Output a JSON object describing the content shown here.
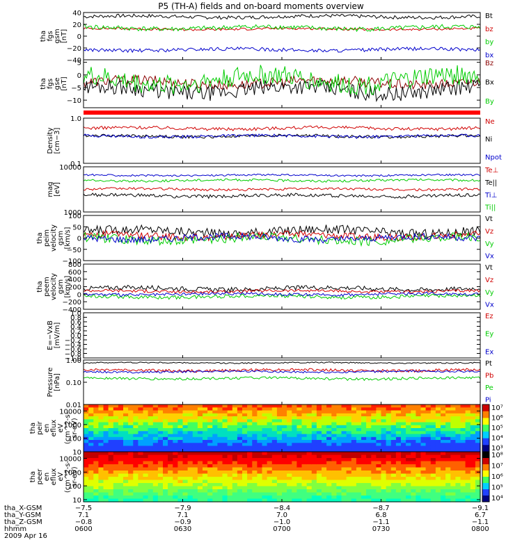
{
  "title": "P5 (TH-A) fields and on-board moments overview",
  "date": "2009 Apr 16",
  "chart_data": {
    "type": "line",
    "panels": [
      {
        "id": "fgs_gsm",
        "ylabel": [
          "tha",
          "fgs",
          "gsm",
          "[nT]"
        ],
        "ylim": [
          -40,
          40
        ],
        "yticks": [
          {
            "v": 40,
            "t": "40"
          },
          {
            "v": 20,
            "t": "20"
          },
          {
            "v": 0,
            "t": "0"
          },
          {
            "v": -20,
            "t": "−20"
          },
          {
            "v": -40,
            "t": "−40"
          }
        ],
        "series": [
          {
            "name": "Bt",
            "color": "#000000",
            "base": 33,
            "amp": 3
          },
          {
            "name": "bz",
            "color": "#d00000",
            "base": 12,
            "amp": 2
          },
          {
            "name": "by",
            "color": "#00cc00",
            "base": 14,
            "amp": 4
          },
          {
            "name": "bx",
            "color": "#0000cc",
            "base": -23,
            "amp": 3
          }
        ]
      },
      {
        "id": "fgs_gse",
        "ylabel": [
          "tha",
          "fgs",
          "gse",
          "[nT]"
        ],
        "ylim": [
          -13,
          6
        ],
        "yticks": [
          {
            "v": 5,
            "t": "5"
          },
          {
            "v": 0,
            "t": "0"
          },
          {
            "v": -5,
            "t": "−5"
          },
          {
            "v": -10,
            "t": "−10"
          }
        ],
        "series": [
          {
            "name": "Bz",
            "color": "#8b0000",
            "base": -3,
            "amp": 2
          },
          {
            "name": "Bx",
            "color": "#000000",
            "base": -6,
            "amp": 3
          },
          {
            "name": "By",
            "color": "#00cc00",
            "base": -2,
            "amp": 4
          }
        ]
      },
      {
        "id": "density",
        "ylabel": [
          "Density",
          "[cm−3]"
        ],
        "ylim": [
          0.1,
          1.0
        ],
        "log": true,
        "yticks": [
          {
            "v": 1.0,
            "t": "1.0"
          },
          {
            "v": 0.1,
            "t": "0.1"
          }
        ],
        "series": [
          {
            "name": "Ne",
            "color": "#d00000",
            "base": 0.6,
            "amp": 0.05
          },
          {
            "name": "Ni",
            "color": "#000000",
            "base": 0.4,
            "amp": 0.03
          },
          {
            "name": "Npot",
            "color": "#0000cc",
            "base": 0.4,
            "amp": 0.03
          }
        ]
      },
      {
        "id": "temperature",
        "ylabel": [
          "mag",
          "[eV]"
        ],
        "ylim": [
          1000,
          10000
        ],
        "log": true,
        "yticks": [
          {
            "v": 10000,
            "t": "10000"
          },
          {
            "v": 1000,
            "t": "1000"
          }
        ],
        "series": [
          {
            "name": "Te⊥",
            "color": "#d00000",
            "base": 3200,
            "amp": 200
          },
          {
            "name": "Te||",
            "color": "#000000",
            "base": 2300,
            "amp": 200
          },
          {
            "name": "Ti⊥",
            "color": "#0000cc",
            "base": 6500,
            "amp": 300
          },
          {
            "name": "Ti||",
            "color": "#00cc00",
            "base": 5000,
            "amp": 300
          }
        ]
      },
      {
        "id": "peim_vel",
        "ylabel": [
          "tha",
          "peim",
          "velocity",
          "gsm",
          "[km/s]"
        ],
        "ylim": [
          -100,
          100
        ],
        "yticks": [
          {
            "v": 100,
            "t": "100"
          },
          {
            "v": 50,
            "t": "50"
          },
          {
            "v": 0,
            "t": "0"
          },
          {
            "v": -50,
            "t": "−50"
          },
          {
            "v": -100,
            "t": "−100"
          }
        ],
        "series": [
          {
            "name": "Vt",
            "color": "#000000",
            "base": 30,
            "amp": 20
          },
          {
            "name": "Vz",
            "color": "#d00000",
            "base": 10,
            "amp": 15
          },
          {
            "name": "Vy",
            "color": "#00cc00",
            "base": -5,
            "amp": 20
          },
          {
            "name": "Vx",
            "color": "#0000cc",
            "base": 0,
            "amp": 15
          }
        ]
      },
      {
        "id": "peem_vel",
        "ylabel": [
          "tha",
          "peem",
          "velocity",
          "gsm",
          "[km/s]"
        ],
        "ylim": [
          -400,
          800
        ],
        "yticks": [
          {
            "v": 800,
            "t": "800"
          },
          {
            "v": 600,
            "t": "600"
          },
          {
            "v": 400,
            "t": "400"
          },
          {
            "v": 200,
            "t": "200"
          },
          {
            "v": 0,
            "t": "0"
          },
          {
            "v": -200,
            "t": "−200"
          },
          {
            "v": -400,
            "t": "−400"
          }
        ],
        "series": [
          {
            "name": "Vt",
            "color": "#000000",
            "base": 150,
            "amp": 60
          },
          {
            "name": "Vz",
            "color": "#d00000",
            "base": 80,
            "amp": 40
          },
          {
            "name": "Vy",
            "color": "#00cc00",
            "base": -60,
            "amp": 50
          },
          {
            "name": "Vx",
            "color": "#0000cc",
            "base": 0,
            "amp": 40
          }
        ]
      },
      {
        "id": "exb",
        "ylabel": [
          "E=−VxB",
          "[mV/m]"
        ],
        "ylim": [
          -1.0,
          1.0
        ],
        "yticks": [
          {
            "v": 1.0,
            "t": "1.0"
          },
          {
            "v": 0.8,
            "t": "0.8"
          },
          {
            "v": 0.6,
            "t": "0.6"
          },
          {
            "v": 0.4,
            "t": "0.4"
          },
          {
            "v": 0.2,
            "t": "0.2"
          },
          {
            "v": 0.0,
            "t": "0.0"
          },
          {
            "v": -0.2,
            "t": "−0.2"
          },
          {
            "v": -0.4,
            "t": "−0.4"
          },
          {
            "v": -0.6,
            "t": "−0.6"
          },
          {
            "v": -0.8,
            "t": "−0.8"
          },
          {
            "v": -1.0,
            "t": "−1.0"
          }
        ],
        "series": [
          {
            "name": "Ez",
            "color": "#d00000"
          },
          {
            "name": "Ey",
            "color": "#00cc00"
          },
          {
            "name": "Ex",
            "color": "#0000cc"
          }
        ]
      },
      {
        "id": "pressure",
        "ylabel": [
          "Pressure",
          "[nPa]"
        ],
        "ylim": [
          0.01,
          1.0
        ],
        "log": true,
        "yticks": [
          {
            "v": 1.0,
            "t": "1.00"
          },
          {
            "v": 0.1,
            "t": "0.10"
          },
          {
            "v": 0.01,
            "t": "0.01"
          }
        ],
        "series": [
          {
            "name": "Pt",
            "color": "#000000",
            "base": 0.75,
            "amp": 0.05
          },
          {
            "name": "Pb",
            "color": "#d00000",
            "base": 0.35,
            "amp": 0.05
          },
          {
            "name": "Pe",
            "color": "#00cc00",
            "base": 0.15,
            "amp": 0.02
          },
          {
            "name": "Pi",
            "color": "#0000cc",
            "base": 0.3,
            "amp": 0.03
          }
        ]
      },
      {
        "id": "peir_eflux",
        "type": "heatmap",
        "ylabel": [
          "tha",
          "peir",
          "en",
          "eflux",
          "eV",
          "(cm^2-s-",
          "sr-eV)"
        ],
        "ylim": [
          10,
          30000
        ],
        "log": true,
        "yticks": [
          {
            "v": 10000,
            "t": "10000"
          },
          {
            "v": 1000,
            "t": "1000"
          },
          {
            "v": 100,
            "t": "100"
          },
          {
            "v": 10,
            "t": "10"
          }
        ],
        "colorbar": [
          "10⁷",
          "10⁶",
          "10⁵",
          "10⁴",
          "10³"
        ]
      },
      {
        "id": "peer_eflux",
        "type": "heatmap",
        "ylabel": [
          "tha",
          "peer",
          "en",
          "eflux",
          "eV",
          "(cm^2-s-",
          "sr-eV)"
        ],
        "ylim": [
          7,
          30000
        ],
        "log": true,
        "yticks": [
          {
            "v": 10000,
            "t": "10000"
          },
          {
            "v": 1000,
            "t": "1000"
          },
          {
            "v": 100,
            "t": "100"
          },
          {
            "v": 10,
            "t": "10"
          }
        ],
        "colorbar": [
          "10⁸",
          "10⁷",
          "10⁶",
          "10⁵",
          "10⁴"
        ]
      }
    ],
    "x": {
      "ticks": [
        "0600",
        "0630",
        "0700",
        "0730",
        "0800"
      ]
    },
    "footer": {
      "labels": [
        "tha_X-GSM",
        "tha_Y-GSM",
        "tha_Z-GSM",
        "hhmm"
      ],
      "rows": [
        [
          "−7.5",
          "−7.9",
          "−8.4",
          "−8.7",
          "−9.1"
        ],
        [
          "7.1",
          "7.1",
          "7.0",
          "6.8",
          "6.7"
        ],
        [
          "−0.8",
          "−0.9",
          "−1.0",
          "−1.1",
          "−1.1"
        ],
        [
          "0600",
          "0630",
          "0700",
          "0730",
          "0800"
        ]
      ]
    }
  }
}
